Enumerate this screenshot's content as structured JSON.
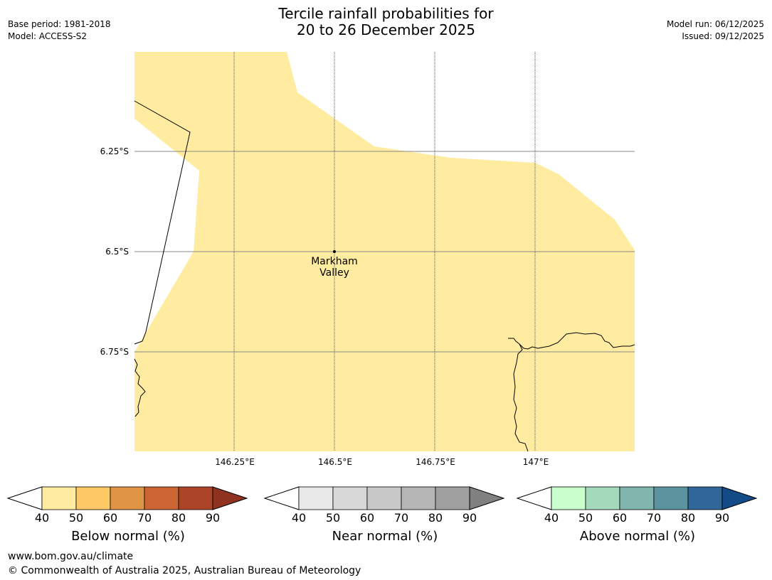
{
  "title_line1": "Tercile rainfall probabilities for",
  "title_line2": "20 to 26 December 2025",
  "meta_left": [
    "Base period: 1981-2018",
    "Model: ACCESS-S2"
  ],
  "meta_right": [
    "Model run: 06/12/2025",
    "Issued: 09/12/2025"
  ],
  "map": {
    "lat_labels": [
      "6.25°S",
      "6.5°S",
      "6.75°S"
    ],
    "lon_labels": [
      "146.25°E",
      "146.5°E",
      "146.75°E",
      "147°E"
    ],
    "place_label": [
      "Markham",
      "Valley"
    ],
    "shaded_category": "Below normal 40-50%",
    "fill_color": "#ffeca0"
  },
  "colorbars": [
    {
      "label": "Below normal (%)",
      "ticks": [
        "40",
        "50",
        "60",
        "70",
        "80",
        "90"
      ],
      "colors": [
        "#ffeca0",
        "#fdc866",
        "#e09545",
        "#cb6534",
        "#ac4428",
        "#8f3320"
      ]
    },
    {
      "label": "Near normal (%)",
      "ticks": [
        "40",
        "50",
        "60",
        "70",
        "80",
        "90"
      ],
      "colors": [
        "#e8e8e8",
        "#d8d8d8",
        "#c8c8c8",
        "#b5b5b5",
        "#a0a0a0",
        "#808080"
      ]
    },
    {
      "label": "Above normal (%)",
      "ticks": [
        "40",
        "50",
        "60",
        "70",
        "80",
        "90"
      ],
      "colors": [
        "#c9ffcc",
        "#a5d9bc",
        "#80b6ad",
        "#5b939f",
        "#2f6798",
        "#134b86"
      ]
    }
  ],
  "footer": {
    "url": "www.bom.gov.au/climate",
    "copyright": "© Commonwealth of Australia 2025, Australian Bureau of Meteorology"
  }
}
